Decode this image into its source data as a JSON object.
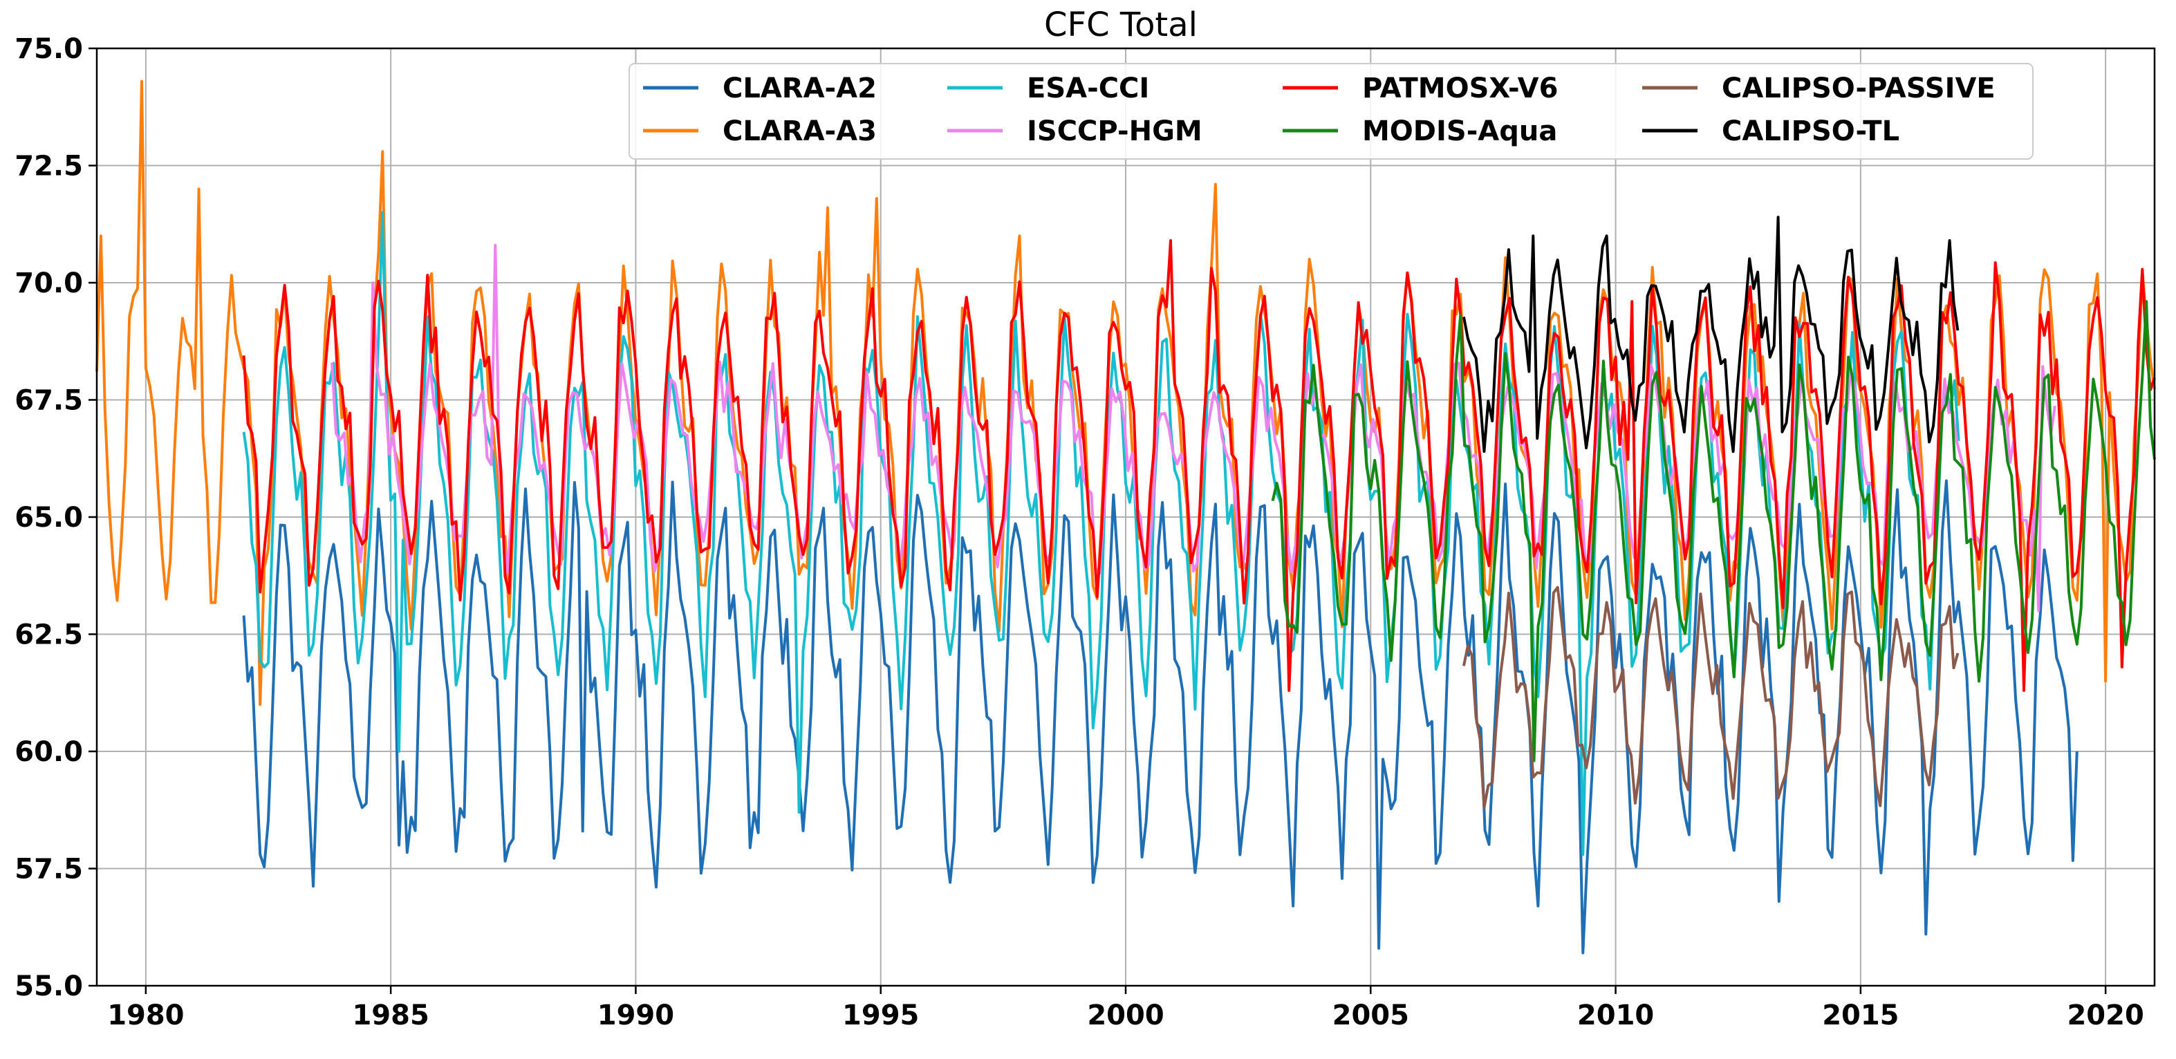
{
  "chart_data": {
    "type": "line",
    "title": "CFC Total",
    "xlabel": "",
    "ylabel": "",
    "xlim": [
      1979.0,
      2021.0
    ],
    "ylim": [
      55.0,
      75.0
    ],
    "grid": true,
    "legend_position": "top-right",
    "x_ticks": [
      1980,
      1985,
      1990,
      1995,
      2000,
      2005,
      2010,
      2015,
      2020
    ],
    "x_tick_labels": [
      "1980",
      "1985",
      "1990",
      "1995",
      "2000",
      "2005",
      "2010",
      "2015",
      "2020"
    ],
    "y_ticks": [
      55.0,
      57.5,
      60.0,
      62.5,
      65.0,
      67.5,
      70.0,
      72.5,
      75.0
    ],
    "y_tick_labels": [
      "55.0",
      "57.5",
      "60.0",
      "62.5",
      "65.0",
      "67.5",
      "70.0",
      "72.5",
      "75.0"
    ],
    "series": [
      {
        "name": "CLARA-A2",
        "color": "#1f6fb4",
        "start": 1982.0,
        "end": 2019.45,
        "mean": 61.6,
        "amplitude": 3.0,
        "jitter": 0.9,
        "anchors": [
          {
            "x": 1982.3,
            "y": 57.8
          },
          {
            "x": 1984.4,
            "y": 58.8
          },
          {
            "x": 1985.2,
            "y": 58.0
          },
          {
            "x": 1988.9,
            "y": 58.3
          },
          {
            "x": 1991.3,
            "y": 57.4
          },
          {
            "x": 1999.3,
            "y": 57.2
          },
          {
            "x": 2003.4,
            "y": 56.7
          },
          {
            "x": 2005.2,
            "y": 55.8
          },
          {
            "x": 2008.4,
            "y": 56.7
          },
          {
            "x": 2009.3,
            "y": 55.7
          },
          {
            "x": 2013.3,
            "y": 56.8
          },
          {
            "x": 2016.3,
            "y": 56.1
          },
          {
            "x": 2019.4,
            "y": 60.0
          }
        ]
      },
      {
        "name": "CLARA-A3",
        "color": "#ff7f0e",
        "start": 1979.0,
        "end": 2021.0,
        "mean": 66.8,
        "amplitude": 2.8,
        "jitter": 0.8,
        "anchors": [
          {
            "x": 1979.1,
            "y": 71.0
          },
          {
            "x": 1979.5,
            "y": 64.5
          },
          {
            "x": 1979.9,
            "y": 74.3
          },
          {
            "x": 1980.3,
            "y": 64.2
          },
          {
            "x": 1981.1,
            "y": 72.0
          },
          {
            "x": 1982.3,
            "y": 61.0
          },
          {
            "x": 1984.8,
            "y": 72.8
          },
          {
            "x": 1993.9,
            "y": 71.6
          },
          {
            "x": 1994.9,
            "y": 71.8
          },
          {
            "x": 1997.8,
            "y": 71.0
          },
          {
            "x": 2001.8,
            "y": 72.1
          },
          {
            "x": 2020.0,
            "y": 61.5
          }
        ]
      },
      {
        "name": "ESA-CCI",
        "color": "#17becf",
        "start": 1982.0,
        "end": 2017.0,
        "mean": 65.3,
        "amplitude": 2.9,
        "jitter": 0.9,
        "anchors": [
          {
            "x": 1984.8,
            "y": 71.5
          },
          {
            "x": 1985.2,
            "y": 60.0
          },
          {
            "x": 1993.3,
            "y": 58.7
          },
          {
            "x": 1999.3,
            "y": 60.5
          },
          {
            "x": 2004.8,
            "y": 69.2
          },
          {
            "x": 2009.3,
            "y": 57.8
          }
        ]
      },
      {
        "name": "ISCCP-HGM",
        "color": "#ee82ee",
        "start": 1983.8,
        "end": 2019.0,
        "mean": 66.2,
        "amplitude": 1.5,
        "jitter": 0.6,
        "anchors": [
          {
            "x": 1984.6,
            "y": 70.0
          },
          {
            "x": 1987.1,
            "y": 70.8
          },
          {
            "x": 1999.5,
            "y": 63.8
          },
          {
            "x": 2018.6,
            "y": 63.0
          }
        ]
      },
      {
        "name": "PATMOSX-V6",
        "color": "#ff0000",
        "start": 1982.0,
        "end": 2021.0,
        "mean": 66.9,
        "amplitude": 2.5,
        "jitter": 0.8,
        "anchors": [
          {
            "x": 1982.3,
            "y": 63.4
          },
          {
            "x": 2000.9,
            "y": 70.9
          },
          {
            "x": 2003.3,
            "y": 61.3
          },
          {
            "x": 2010.3,
            "y": 69.6
          },
          {
            "x": 2018.3,
            "y": 61.3
          },
          {
            "x": 2020.3,
            "y": 61.8
          }
        ]
      },
      {
        "name": "MODIS-Aqua",
        "color": "#138a13",
        "start": 2003.0,
        "end": 2021.0,
        "mean": 65.2,
        "amplitude": 2.5,
        "jitter": 0.7,
        "anchors": [
          {
            "x": 2006.8,
            "y": 69.3
          },
          {
            "x": 2008.3,
            "y": 59.8
          },
          {
            "x": 2020.8,
            "y": 69.6
          }
        ]
      },
      {
        "name": "CALIPSO-PASSIVE",
        "color": "#8c5a4a",
        "start": 2006.9,
        "end": 2017.0,
        "mean": 61.2,
        "amplitude": 1.6,
        "jitter": 0.6,
        "anchors": [
          {
            "x": 2007.3,
            "y": 58.8
          },
          {
            "x": 2008.8,
            "y": 63.5
          },
          {
            "x": 2013.3,
            "y": 59.0
          },
          {
            "x": 2015.3,
            "y": 59.3
          }
        ]
      },
      {
        "name": "CALIPSO-TL",
        "color": "#000000",
        "start": 2006.9,
        "end": 2017.0,
        "mean": 68.7,
        "amplitude": 1.4,
        "jitter": 0.6,
        "anchors": [
          {
            "x": 2007.3,
            "y": 66.4
          },
          {
            "x": 2008.3,
            "y": 71.0
          },
          {
            "x": 2009.8,
            "y": 71.0
          },
          {
            "x": 2013.3,
            "y": 71.4
          },
          {
            "x": 2016.8,
            "y": 70.9
          }
        ]
      }
    ]
  }
}
